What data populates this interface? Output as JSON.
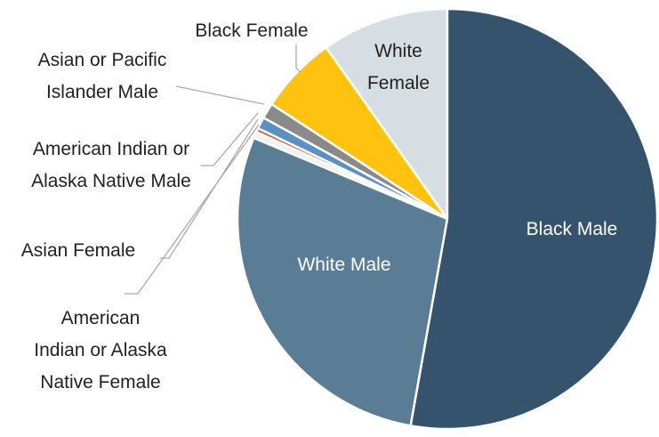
{
  "chart_data": {
    "type": "pie",
    "categories": [
      "Black Male",
      "White Male",
      "American Indian or Alaska Native Female",
      "Asian Female",
      "American Indian or Alaska Native Male",
      "Asian or Pacific Islander Male",
      "Black Female",
      "White Female"
    ],
    "values": [
      52.8,
      28.5,
      0.5,
      0.3,
      0.9,
      1.2,
      6.0,
      9.8
    ],
    "colors": [
      "#36536e",
      "#5a7d95",
      "#f2f2f2",
      "#e05a2b",
      "#5b8fc7",
      "#8a8a8a",
      "#ffc20e",
      "#d6dde3"
    ]
  }
}
